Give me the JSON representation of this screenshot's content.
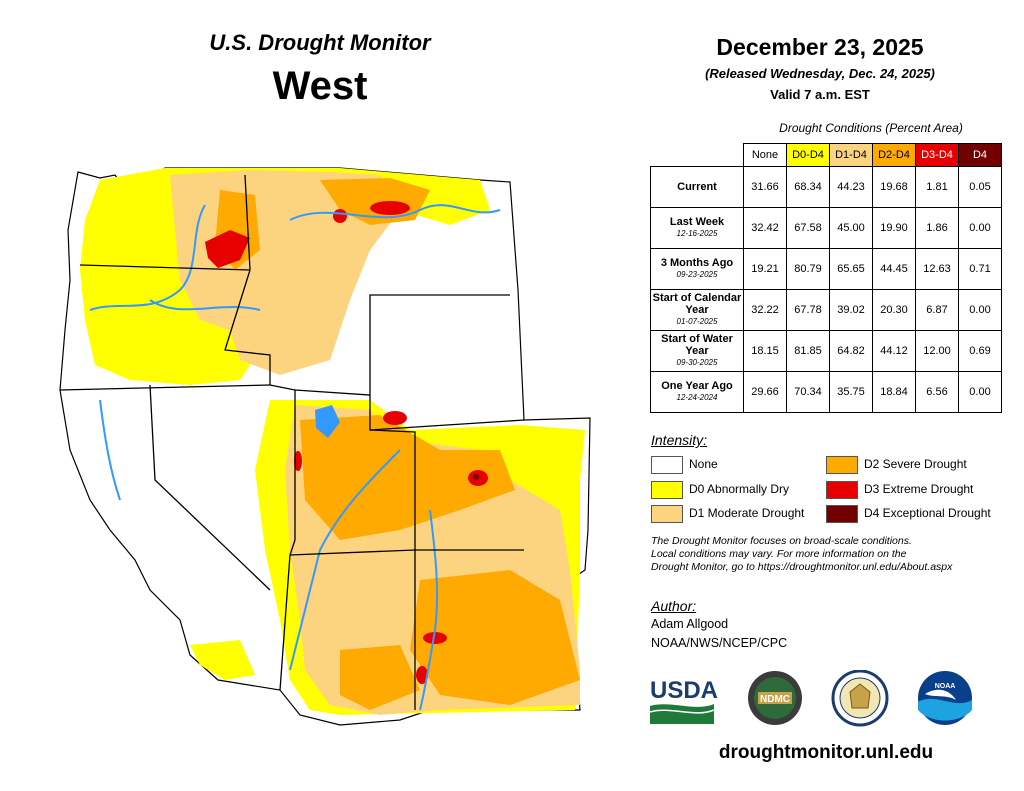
{
  "header": {
    "monitor_title": "U.S. Drought Monitor",
    "region": "West",
    "date": "December 23, 2025",
    "released": "(Released Wednesday, Dec. 24, 2025)",
    "valid": "Valid 7 a.m. EST"
  },
  "table": {
    "caption": "Drought Conditions (Percent Area)",
    "columns": [
      "None",
      "D0-D4",
      "D1-D4",
      "D2-D4",
      "D3-D4",
      "D4"
    ],
    "rows": [
      {
        "label": "Current",
        "date": "",
        "values": [
          "31.66",
          "68.34",
          "44.23",
          "19.68",
          "1.81",
          "0.05"
        ]
      },
      {
        "label": "Last Week",
        "date": "12-16-2025",
        "values": [
          "32.42",
          "67.58",
          "45.00",
          "19.90",
          "1.86",
          "0.00"
        ]
      },
      {
        "label": "3 Months Ago",
        "date": "09-23-2025",
        "values": [
          "19.21",
          "80.79",
          "65.65",
          "44.45",
          "12.63",
          "0.71"
        ]
      },
      {
        "label": "Start of Calendar Year",
        "date": "01-07-2025",
        "values": [
          "32.22",
          "67.78",
          "39.02",
          "20.30",
          "6.87",
          "0.00"
        ]
      },
      {
        "label": "Start of Water Year",
        "date": "09-30-2025",
        "values": [
          "18.15",
          "81.85",
          "64.82",
          "44.12",
          "12.00",
          "0.69"
        ]
      },
      {
        "label": "One Year Ago",
        "date": "12-24-2024",
        "values": [
          "29.66",
          "70.34",
          "35.75",
          "18.84",
          "6.56",
          "0.00"
        ]
      }
    ]
  },
  "legend": {
    "heading": "Intensity:",
    "items": [
      {
        "label": "None",
        "color": "#ffffff"
      },
      {
        "label": "D0 Abnormally Dry",
        "color": "#ffff00"
      },
      {
        "label": "D1 Moderate Drought",
        "color": "#fcd37f"
      },
      {
        "label": "D2 Severe Drought",
        "color": "#ffaa00"
      },
      {
        "label": "D3 Extreme Drought",
        "color": "#e60000"
      },
      {
        "label": "D4 Exceptional Drought",
        "color": "#730000"
      }
    ]
  },
  "disclaimer": {
    "line1": "The Drought Monitor focuses on broad-scale conditions.",
    "line2": "Local conditions may vary. For more information on the",
    "line3": "Drought Monitor, go to https://droughtmonitor.unl.edu/About.aspx"
  },
  "author": {
    "heading": "Author:",
    "name": "Adam Allgood",
    "org": "NOAA/NWS/NCEP/CPC"
  },
  "logos": {
    "usda": "USDA",
    "ndmc": "NDMC",
    "noaa": "NOAA"
  },
  "website": "droughtmonitor.unl.edu",
  "colors": {
    "water": "#3399ff",
    "border": "#000000"
  }
}
